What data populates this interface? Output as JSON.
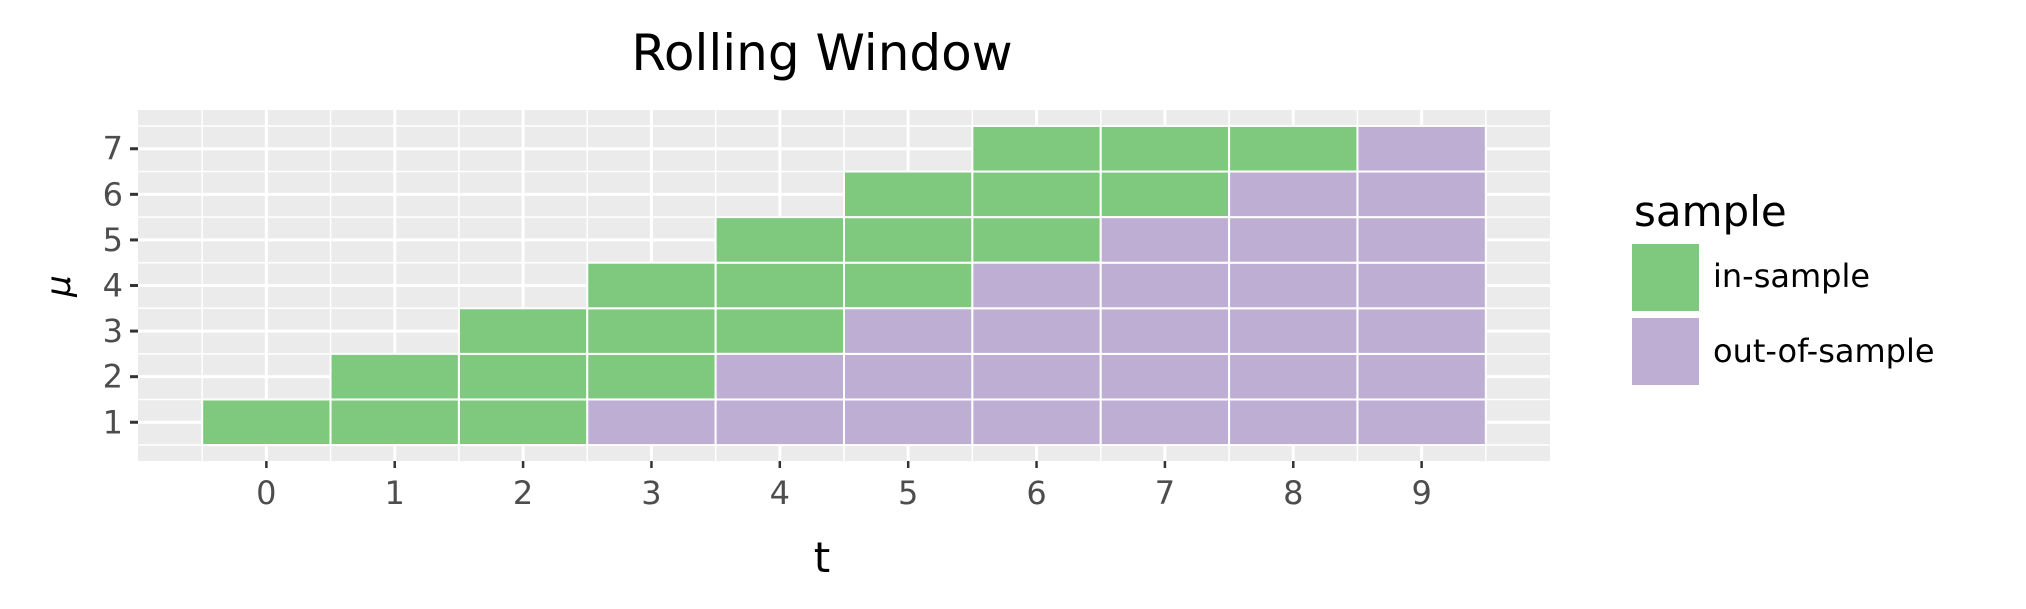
{
  "chart_data": {
    "type": "heatmap",
    "title": "Rolling Window",
    "xlabel": "t",
    "ylabel": "μ",
    "x_ticks": [
      "0",
      "1",
      "2",
      "3",
      "4",
      "5",
      "6",
      "7",
      "8",
      "9"
    ],
    "y_ticks": [
      "1",
      "2",
      "3",
      "4",
      "5",
      "6",
      "7"
    ],
    "xlim": [
      -1,
      10
    ],
    "ylim": [
      0.15,
      7.85
    ],
    "grid": true,
    "legend": {
      "title": "sample",
      "placement": "right",
      "entries": [
        {
          "label": "in-sample",
          "color": "#7fc97f"
        },
        {
          "label": "out-of-sample",
          "color": "#beaed4"
        }
      ]
    },
    "series": [
      {
        "name": "in-sample",
        "color": "#7fc97f",
        "points": [
          [
            0,
            1
          ],
          [
            1,
            1
          ],
          [
            1,
            2
          ],
          [
            2,
            1
          ],
          [
            2,
            2
          ],
          [
            2,
            3
          ],
          [
            3,
            2
          ],
          [
            3,
            3
          ],
          [
            3,
            4
          ],
          [
            4,
            3
          ],
          [
            4,
            4
          ],
          [
            4,
            5
          ],
          [
            5,
            4
          ],
          [
            5,
            5
          ],
          [
            5,
            6
          ],
          [
            6,
            5
          ],
          [
            6,
            6
          ],
          [
            6,
            7
          ],
          [
            7,
            6
          ],
          [
            7,
            7
          ],
          [
            8,
            7
          ]
        ]
      },
      {
        "name": "out-of-sample",
        "color": "#beaed4",
        "points": [
          [
            3,
            1
          ],
          [
            4,
            1
          ],
          [
            4,
            2
          ],
          [
            5,
            1
          ],
          [
            5,
            2
          ],
          [
            5,
            3
          ],
          [
            6,
            1
          ],
          [
            6,
            2
          ],
          [
            6,
            3
          ],
          [
            6,
            4
          ],
          [
            7,
            1
          ],
          [
            7,
            2
          ],
          [
            7,
            3
          ],
          [
            7,
            4
          ],
          [
            7,
            5
          ],
          [
            8,
            1
          ],
          [
            8,
            2
          ],
          [
            8,
            3
          ],
          [
            8,
            4
          ],
          [
            8,
            5
          ],
          [
            8,
            6
          ],
          [
            9,
            1
          ],
          [
            9,
            2
          ],
          [
            9,
            3
          ],
          [
            9,
            4
          ],
          [
            9,
            5
          ],
          [
            9,
            6
          ],
          [
            9,
            7
          ]
        ]
      }
    ]
  }
}
